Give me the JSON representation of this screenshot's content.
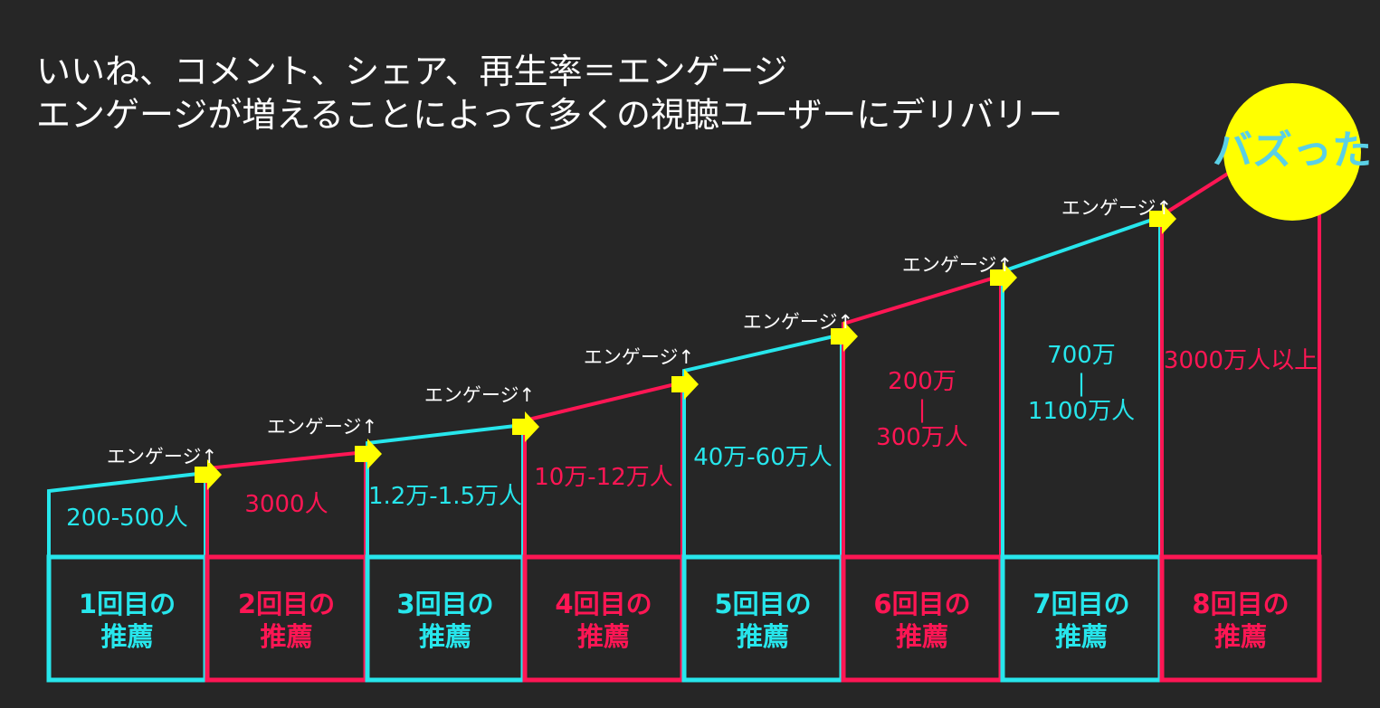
{
  "header": {
    "line1": "いいね、コメント、シェア、再生率＝エンゲージ",
    "line2": "エンゲージが増えることによって多くの視聴ユーザーにデリバリー"
  },
  "colors": {
    "cyan": "#27e6ec",
    "red": "#ff1654",
    "arrow": "#ffff00",
    "circle": "#ffff00",
    "buzz_text": "#5ad0e6"
  },
  "engage_label": "エンゲージ↑",
  "buzz_label": "バズった",
  "stages": [
    {
      "reach": [
        "200-500人"
      ],
      "rec_line1": "1回目の",
      "rec_line2": "推薦",
      "color": "cyan"
    },
    {
      "reach": [
        "3000人"
      ],
      "rec_line1": "2回目の",
      "rec_line2": "推薦",
      "color": "red"
    },
    {
      "reach": [
        "1.2万-1.5万人"
      ],
      "rec_line1": "3回目の",
      "rec_line2": "推薦",
      "color": "cyan"
    },
    {
      "reach": [
        "10万-12万人"
      ],
      "rec_line1": "4回目の",
      "rec_line2": "推薦",
      "color": "red"
    },
    {
      "reach": [
        "40万-60万人"
      ],
      "rec_line1": "5回目の",
      "rec_line2": "推薦",
      "color": "cyan"
    },
    {
      "reach": [
        "200万",
        "|",
        "300万人"
      ],
      "rec_line1": "6回目の",
      "rec_line2": "推薦",
      "color": "red"
    },
    {
      "reach": [
        "700万",
        "|",
        "1100万人"
      ],
      "rec_line1": "7回目の",
      "rec_line2": "推薦",
      "color": "cyan"
    },
    {
      "reach": [
        "3000万人以上"
      ],
      "rec_line1": "8回目の",
      "rec_line2": "推薦",
      "color": "red"
    }
  ]
}
